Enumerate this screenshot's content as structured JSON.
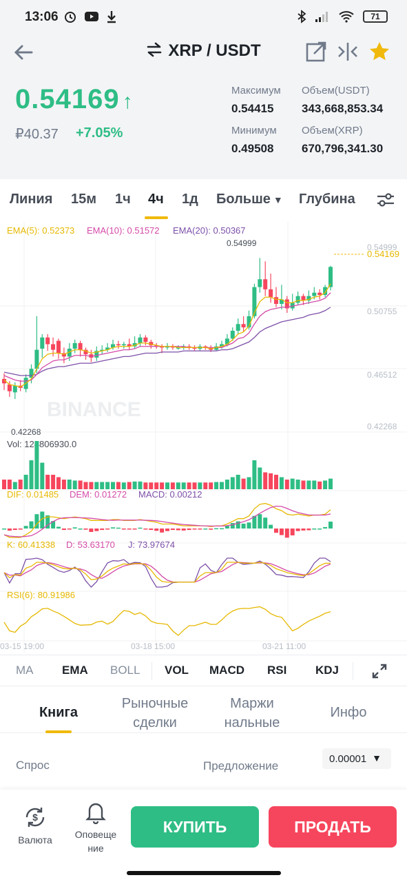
{
  "status_bar": {
    "time": "13:06",
    "battery": "71",
    "left_icons": [
      "alarm-icon",
      "youtube-icon",
      "download-icon"
    ],
    "right_icons": [
      "bluetooth-icon",
      "signal-icon",
      "wifi-icon",
      "battery-icon"
    ]
  },
  "header": {
    "pair": "XRP / USDT",
    "last_price": "0.54169",
    "price_rub": "₽40.37",
    "change_pct": "+7.05%",
    "stats": {
      "high_label": "Максимум",
      "high": "0.54415",
      "low_label": "Минимум",
      "low": "0.49508",
      "vol_usdt_label": "Объем(USDT)",
      "vol_usdt": "343,668,853.34",
      "vol_xrp_label": "Объем(XRP)",
      "vol_xrp": "670,796,341.30"
    }
  },
  "timeframes": {
    "line": "Линия",
    "m15": "15м",
    "h1": "1ч",
    "h4": "4ч",
    "d1": "1д",
    "more": "Больше",
    "depth": "Глубина",
    "active": "4ч"
  },
  "chart_data": [
    {
      "type": "candlestick",
      "title": "",
      "legend": [
        "EMA(5): 0.52373",
        "EMA(10): 0.51572",
        "EMA(20): 0.50367"
      ],
      "y_ticks": [
        "0.54999",
        "0.50755",
        "0.46512",
        "0.42268"
      ],
      "x_ticks": [
        "03-15 19:00",
        "03-18 15:00",
        "03-21 11:00"
      ],
      "high_marker": "0.54999",
      "low_marker": "0.42268",
      "current_price_label": "0.54169",
      "ylim": [
        0.405,
        0.565
      ],
      "watermark": "BINANCE",
      "candles": [
        {
          "o": 0.442,
          "c": 0.438,
          "h": 0.447,
          "l": 0.432
        },
        {
          "o": 0.437,
          "c": 0.431,
          "h": 0.44,
          "l": 0.426
        },
        {
          "o": 0.43,
          "c": 0.436,
          "h": 0.439,
          "l": 0.424
        },
        {
          "o": 0.436,
          "c": 0.434,
          "h": 0.441,
          "l": 0.431
        },
        {
          "o": 0.433,
          "c": 0.443,
          "h": 0.446,
          "l": 0.43
        },
        {
          "o": 0.443,
          "c": 0.451,
          "h": 0.455,
          "l": 0.438
        },
        {
          "o": 0.451,
          "c": 0.468,
          "h": 0.498,
          "l": 0.447
        },
        {
          "o": 0.469,
          "c": 0.479,
          "h": 0.482,
          "l": 0.461
        },
        {
          "o": 0.479,
          "c": 0.473,
          "h": 0.482,
          "l": 0.467
        },
        {
          "o": 0.473,
          "c": 0.468,
          "h": 0.479,
          "l": 0.462
        },
        {
          "o": 0.476,
          "c": 0.465,
          "h": 0.478,
          "l": 0.46
        },
        {
          "o": 0.465,
          "c": 0.462,
          "h": 0.47,
          "l": 0.456
        },
        {
          "o": 0.462,
          "c": 0.469,
          "h": 0.474,
          "l": 0.458
        },
        {
          "o": 0.469,
          "c": 0.474,
          "h": 0.477,
          "l": 0.465
        },
        {
          "o": 0.474,
          "c": 0.468,
          "h": 0.476,
          "l": 0.462
        },
        {
          "o": 0.468,
          "c": 0.464,
          "h": 0.47,
          "l": 0.459
        },
        {
          "o": 0.464,
          "c": 0.461,
          "h": 0.468,
          "l": 0.457
        },
        {
          "o": 0.461,
          "c": 0.467,
          "h": 0.471,
          "l": 0.458
        },
        {
          "o": 0.467,
          "c": 0.468,
          "h": 0.472,
          "l": 0.464
        },
        {
          "o": 0.468,
          "c": 0.47,
          "h": 0.474,
          "l": 0.466
        },
        {
          "o": 0.47,
          "c": 0.473,
          "h": 0.477,
          "l": 0.468
        },
        {
          "o": 0.473,
          "c": 0.472,
          "h": 0.476,
          "l": 0.469
        },
        {
          "o": 0.472,
          "c": 0.473,
          "h": 0.475,
          "l": 0.469
        },
        {
          "o": 0.473,
          "c": 0.471,
          "h": 0.478,
          "l": 0.468
        },
        {
          "o": 0.471,
          "c": 0.474,
          "h": 0.48,
          "l": 0.469
        },
        {
          "o": 0.474,
          "c": 0.479,
          "h": 0.482,
          "l": 0.471
        },
        {
          "o": 0.479,
          "c": 0.475,
          "h": 0.481,
          "l": 0.472
        },
        {
          "o": 0.475,
          "c": 0.472,
          "h": 0.477,
          "l": 0.469
        },
        {
          "o": 0.472,
          "c": 0.471,
          "h": 0.474,
          "l": 0.469
        },
        {
          "o": 0.471,
          "c": 0.47,
          "h": 0.473,
          "l": 0.465
        },
        {
          "o": 0.47,
          "c": 0.471,
          "h": 0.474,
          "l": 0.468
        },
        {
          "o": 0.471,
          "c": 0.47,
          "h": 0.473,
          "l": 0.468
        },
        {
          "o": 0.47,
          "c": 0.47,
          "h": 0.472,
          "l": 0.468
        },
        {
          "o": 0.47,
          "c": 0.471,
          "h": 0.473,
          "l": 0.468
        },
        {
          "o": 0.471,
          "c": 0.47,
          "h": 0.473,
          "l": 0.468
        },
        {
          "o": 0.47,
          "c": 0.469,
          "h": 0.472,
          "l": 0.467
        },
        {
          "o": 0.469,
          "c": 0.471,
          "h": 0.473,
          "l": 0.467
        },
        {
          "o": 0.471,
          "c": 0.47,
          "h": 0.472,
          "l": 0.468
        },
        {
          "o": 0.47,
          "c": 0.468,
          "h": 0.472,
          "l": 0.466
        },
        {
          "o": 0.468,
          "c": 0.471,
          "h": 0.474,
          "l": 0.467
        },
        {
          "o": 0.471,
          "c": 0.473,
          "h": 0.476,
          "l": 0.469
        },
        {
          "o": 0.473,
          "c": 0.478,
          "h": 0.482,
          "l": 0.471
        },
        {
          "o": 0.478,
          "c": 0.485,
          "h": 0.488,
          "l": 0.476
        },
        {
          "o": 0.485,
          "c": 0.491,
          "h": 0.496,
          "l": 0.482
        },
        {
          "o": 0.491,
          "c": 0.488,
          "h": 0.498,
          "l": 0.484
        },
        {
          "o": 0.488,
          "c": 0.498,
          "h": 0.503,
          "l": 0.486
        },
        {
          "o": 0.498,
          "c": 0.524,
          "h": 0.527,
          "l": 0.496
        },
        {
          "o": 0.524,
          "c": 0.531,
          "h": 0.55,
          "l": 0.519
        },
        {
          "o": 0.531,
          "c": 0.522,
          "h": 0.547,
          "l": 0.516
        },
        {
          "o": 0.522,
          "c": 0.515,
          "h": 0.536,
          "l": 0.51
        },
        {
          "o": 0.515,
          "c": 0.509,
          "h": 0.524,
          "l": 0.506
        },
        {
          "o": 0.509,
          "c": 0.513,
          "h": 0.526,
          "l": 0.504
        },
        {
          "o": 0.513,
          "c": 0.505,
          "h": 0.516,
          "l": 0.501
        },
        {
          "o": 0.505,
          "c": 0.51,
          "h": 0.518,
          "l": 0.503
        },
        {
          "o": 0.51,
          "c": 0.516,
          "h": 0.52,
          "l": 0.508
        },
        {
          "o": 0.516,
          "c": 0.512,
          "h": 0.518,
          "l": 0.508
        },
        {
          "o": 0.512,
          "c": 0.516,
          "h": 0.521,
          "l": 0.509
        },
        {
          "o": 0.516,
          "c": 0.519,
          "h": 0.524,
          "l": 0.513
        },
        {
          "o": 0.519,
          "c": 0.517,
          "h": 0.522,
          "l": 0.513
        },
        {
          "o": 0.517,
          "c": 0.524,
          "h": 0.526,
          "l": 0.515
        },
        {
          "o": 0.524,
          "c": 0.542,
          "h": 0.543,
          "l": 0.521
        }
      ],
      "ema5": [
        0.441,
        0.437,
        0.436,
        0.435,
        0.438,
        0.442,
        0.451,
        0.46,
        0.464,
        0.465,
        0.465,
        0.464,
        0.466,
        0.468,
        0.468,
        0.467,
        0.465,
        0.466,
        0.467,
        0.468,
        0.47,
        0.471,
        0.471,
        0.471,
        0.472,
        0.474,
        0.474,
        0.473,
        0.472,
        0.471,
        0.471,
        0.471,
        0.47,
        0.47,
        0.47,
        0.47,
        0.47,
        0.47,
        0.469,
        0.47,
        0.471,
        0.473,
        0.477,
        0.482,
        0.484,
        0.489,
        0.501,
        0.511,
        0.515,
        0.515,
        0.513,
        0.513,
        0.51,
        0.51,
        0.512,
        0.512,
        0.513,
        0.515,
        0.516,
        0.519,
        0.527
      ],
      "ema10": [
        0.445,
        0.443,
        0.441,
        0.44,
        0.44,
        0.441,
        0.446,
        0.452,
        0.455,
        0.458,
        0.459,
        0.459,
        0.461,
        0.463,
        0.463,
        0.463,
        0.462,
        0.463,
        0.464,
        0.465,
        0.466,
        0.467,
        0.468,
        0.468,
        0.469,
        0.471,
        0.471,
        0.471,
        0.471,
        0.471,
        0.471,
        0.471,
        0.471,
        0.471,
        0.47,
        0.47,
        0.47,
        0.47,
        0.47,
        0.47,
        0.47,
        0.472,
        0.474,
        0.478,
        0.479,
        0.483,
        0.491,
        0.498,
        0.502,
        0.504,
        0.505,
        0.506,
        0.506,
        0.507,
        0.508,
        0.509,
        0.51,
        0.511,
        0.512,
        0.514,
        0.519
      ],
      "ema20": [
        0.448,
        0.447,
        0.446,
        0.445,
        0.445,
        0.445,
        0.446,
        0.449,
        0.451,
        0.452,
        0.453,
        0.453,
        0.454,
        0.455,
        0.456,
        0.456,
        0.456,
        0.457,
        0.458,
        0.459,
        0.46,
        0.461,
        0.462,
        0.462,
        0.463,
        0.464,
        0.465,
        0.465,
        0.465,
        0.466,
        0.466,
        0.466,
        0.466,
        0.467,
        0.467,
        0.467,
        0.467,
        0.467,
        0.467,
        0.467,
        0.468,
        0.468,
        0.469,
        0.471,
        0.473,
        0.475,
        0.479,
        0.484,
        0.487,
        0.489,
        0.491,
        0.493,
        0.494,
        0.495,
        0.496,
        0.497,
        0.499,
        0.5,
        0.501,
        0.503,
        0.506
      ]
    },
    {
      "type": "bar",
      "title": "Vol: 124806930.0",
      "values": [
        0.2,
        0.2,
        0.15,
        0.2,
        0.3,
        0.6,
        1.0,
        0.55,
        0.3,
        0.3,
        0.25,
        0.2,
        0.2,
        0.18,
        0.18,
        0.15,
        0.15,
        0.15,
        0.15,
        0.15,
        0.15,
        0.15,
        0.14,
        0.15,
        0.16,
        0.16,
        0.14,
        0.14,
        0.14,
        0.14,
        0.14,
        0.14,
        0.14,
        0.14,
        0.14,
        0.14,
        0.14,
        0.14,
        0.14,
        0.15,
        0.15,
        0.2,
        0.25,
        0.3,
        0.22,
        0.25,
        0.6,
        0.45,
        0.35,
        0.33,
        0.3,
        0.25,
        0.2,
        0.22,
        0.2,
        0.18,
        0.18,
        0.18,
        0.16,
        0.18,
        0.22
      ]
    },
    {
      "type": "bar",
      "title": "MACD",
      "legend": [
        "DIF: 0.01485",
        "DEM: 0.01272",
        "MACD: 0.00212"
      ]
    },
    {
      "type": "line",
      "title": "KDJ",
      "legend": [
        "K: 60.41338",
        "D: 53.63170",
        "J: 73.97674"
      ]
    },
    {
      "type": "line",
      "title": "RSI",
      "legend": [
        "RSI(6): 80.91986"
      ]
    }
  ],
  "indicators": {
    "ma": "MA",
    "ema": "EMA",
    "boll": "BOLL",
    "vol": "VOL",
    "macd": "MACD",
    "rsi": "RSI",
    "kdj": "KDJ"
  },
  "tabs": {
    "book": "Книга",
    "market_trades_1": "Рыночные",
    "market_trades_2": "сделки",
    "margin_1": "Маржи",
    "margin_2": "нальные",
    "info": "Инфо"
  },
  "order_book": {
    "bid_label": "Спрос",
    "ask_label": "Предложение",
    "step": "0.00001"
  },
  "actions": {
    "currency": "Валюта",
    "alerts_1": "Оповеще",
    "alerts_2": "ние",
    "buy": "КУПИТЬ",
    "sell": "ПРОДАТЬ"
  },
  "colors": {
    "up": "#2ebd85",
    "down": "#f6465d",
    "accent": "#f0b90b",
    "ema5": "#e6b800",
    "ema10": "#d44aa8",
    "ema20": "#7c4fa8"
  }
}
